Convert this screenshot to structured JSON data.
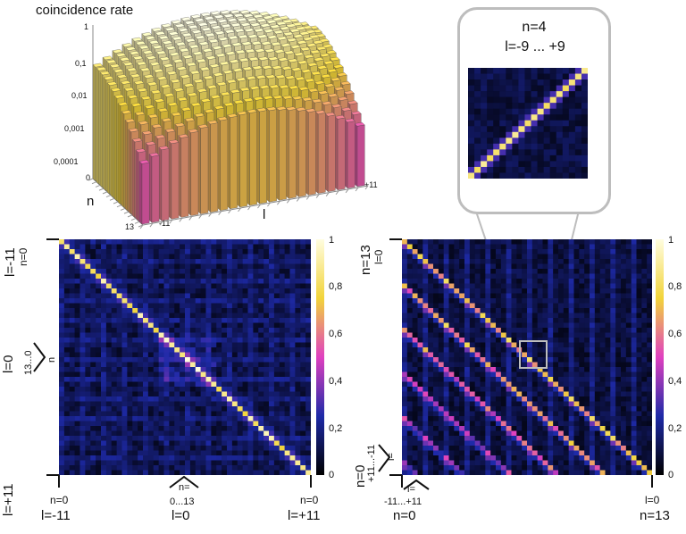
{
  "surface": {
    "title": "coincidence rate",
    "z_ticks": [
      "1",
      "0,1",
      "0,01",
      "0,001",
      "0,0001"
    ],
    "n_axis": {
      "label": "n",
      "ticks": [
        "0",
        "13"
      ]
    },
    "l_axis": {
      "label": "l",
      "ticks": [
        "-11",
        "0",
        "+11"
      ]
    }
  },
  "left_matrix": {
    "top_n": "n=0",
    "top_l": "l=-11",
    "mid_l": "l=0",
    "mid_n": "n",
    "mid_range": "13...0",
    "bottom_l": "l=+11",
    "x_left_n": "n=0",
    "x_left_l": "l=-11",
    "x_mid_n": "n=",
    "x_mid_range": "0...13",
    "x_mid_l": "l=0",
    "x_right_n": "n=0",
    "x_right_l": "l=+11"
  },
  "right_matrix": {
    "top_l": "l=0",
    "top_n": "n=13",
    "side_range": "+11...-11",
    "side_l": "l=",
    "side_n": "n=0",
    "x_l": "l=",
    "x_range": "-11...+11",
    "x_n": "n=0",
    "x_right_l": "l=0",
    "x_right_n": "n=13"
  },
  "callout": {
    "line1": "n=4",
    "line2": "l=-9 ... +9"
  },
  "colorbar_ticks": [
    "1",
    "0,8",
    "0,6",
    "0,4",
    "0,2",
    "0"
  ],
  "colors": {
    "dark": "#000000",
    "blue": "#1e2aa8",
    "magenta": "#e040c0",
    "yellow": "#f2d43a",
    "white": "#fffde0"
  }
}
